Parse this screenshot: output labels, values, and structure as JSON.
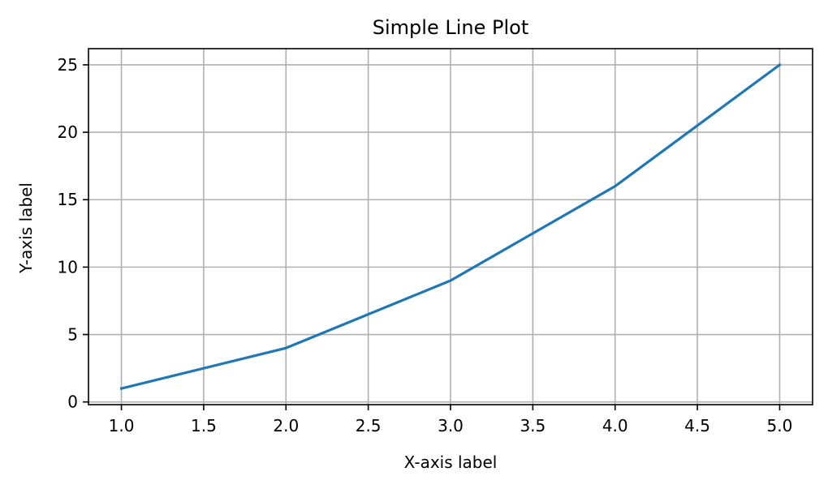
{
  "chart_data": {
    "type": "line",
    "title": "Simple Line Plot",
    "xlabel": "X-axis label",
    "ylabel": "Y-axis label",
    "x": [
      1,
      2,
      3,
      4,
      5
    ],
    "series": [
      {
        "values": [
          1,
          4,
          9,
          16,
          25
        ]
      }
    ],
    "xlim": [
      0.8,
      5.2
    ],
    "ylim": [
      -0.2,
      26.2
    ],
    "xticks": [
      1.0,
      1.5,
      2.0,
      2.5,
      3.0,
      3.5,
      4.0,
      4.5,
      5.0
    ],
    "xtick_labels": [
      "1.0",
      "1.5",
      "2.0",
      "2.5",
      "3.0",
      "3.5",
      "4.0",
      "4.5",
      "5.0"
    ],
    "yticks": [
      0,
      5,
      10,
      15,
      20,
      25
    ],
    "ytick_labels": [
      "0",
      "5",
      "10",
      "15",
      "20",
      "25"
    ],
    "grid": true,
    "legend": "none",
    "colors": {
      "line": "#1f77b4",
      "grid": "#b0b0b0",
      "axes": "#000000",
      "background": "#ffffff"
    }
  }
}
